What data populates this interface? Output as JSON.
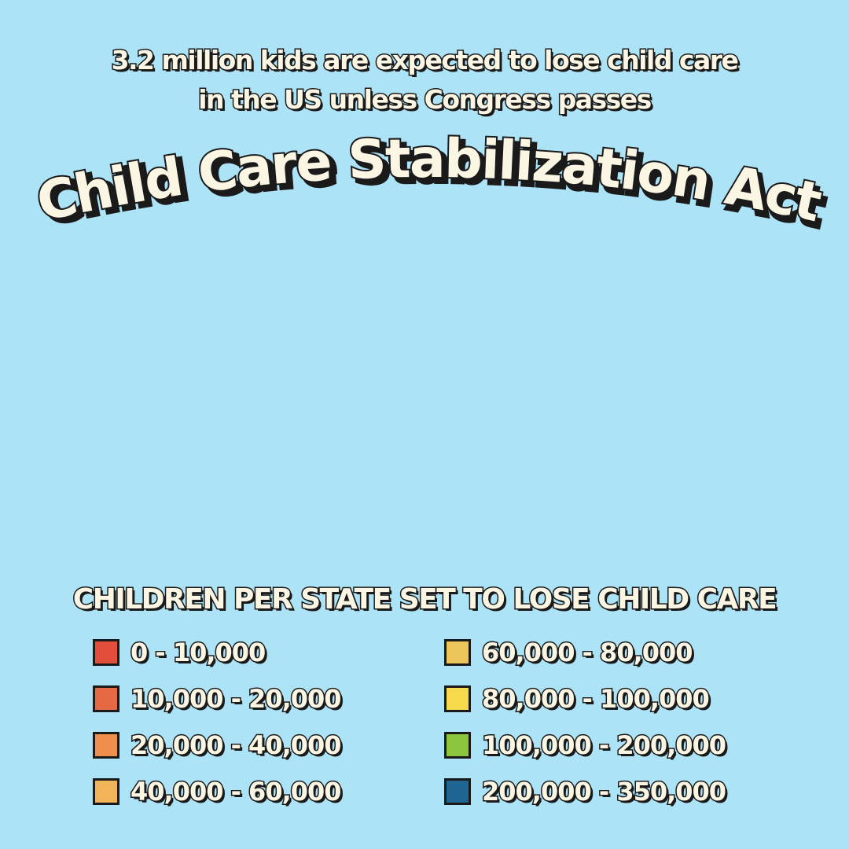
{
  "subtitle": {
    "line1": "3.2 million kids are expected to lose child care",
    "line2": "in the US unless Congress passes"
  },
  "title": "Child Care Stabilization Act",
  "legend": {
    "title": "CHILDREN PER STATE SET TO LOSE CHILD CARE",
    "items": [
      {
        "label": "0 - 10,000",
        "color": "#e14f3b"
      },
      {
        "label": "10,000 - 20,000",
        "color": "#e56a44"
      },
      {
        "label": "20,000 - 40,000",
        "color": "#ee8f4c"
      },
      {
        "label": "40,000 - 60,000",
        "color": "#f2b458"
      },
      {
        "label": "60,000 - 80,000",
        "color": "#ecc65a"
      },
      {
        "label": "80,000 - 100,000",
        "color": "#f7d94e"
      },
      {
        "label": "100,000 - 200,000",
        "color": "#8cc63f"
      },
      {
        "label": "200,000 - 350,000",
        "color": "#1f6694"
      }
    ]
  }
}
